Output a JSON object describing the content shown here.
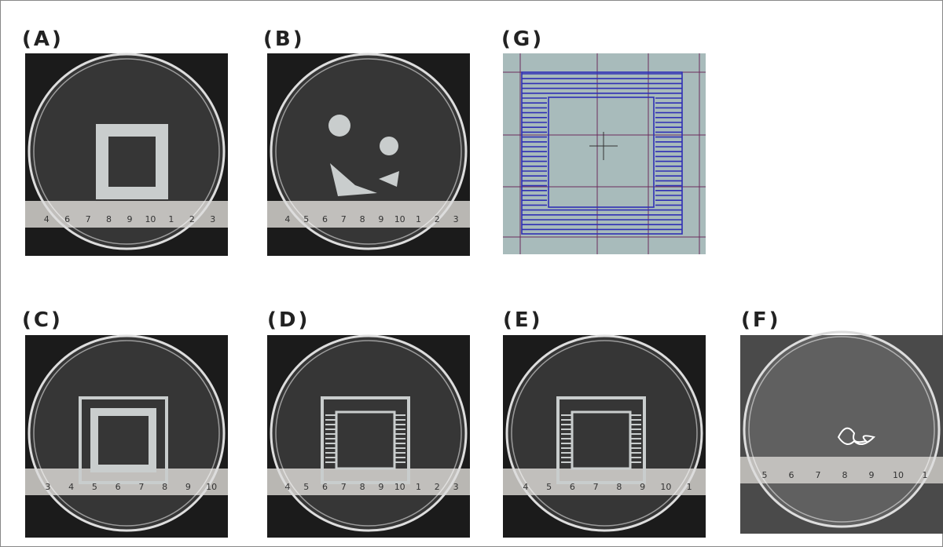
{
  "panels": [
    {
      "label": "(A)",
      "ruler": [
        "4",
        "6",
        "7",
        "8",
        "9",
        "10",
        "1",
        "2",
        "3"
      ]
    },
    {
      "label": "(B)",
      "ruler": [
        "4",
        "5",
        "6",
        "7",
        "8",
        "9",
        "10",
        "1",
        "2",
        "3"
      ]
    },
    {
      "label": "(G)"
    },
    {
      "label": "(C)",
      "ruler": [
        "3",
        "4",
        "5",
        "6",
        "7",
        "8",
        "9",
        "10"
      ]
    },
    {
      "label": "(D)",
      "ruler": [
        "4",
        "5",
        "6",
        "7",
        "8",
        "9",
        "10",
        "1",
        "2",
        "3"
      ]
    },
    {
      "label": "(E)",
      "ruler": [
        "4",
        "5",
        "6",
        "7",
        "8",
        "9",
        "10",
        "1"
      ]
    },
    {
      "label": "(F)",
      "ruler": [
        "5",
        "6",
        "7",
        "8",
        "9",
        "10",
        "1"
      ]
    }
  ]
}
